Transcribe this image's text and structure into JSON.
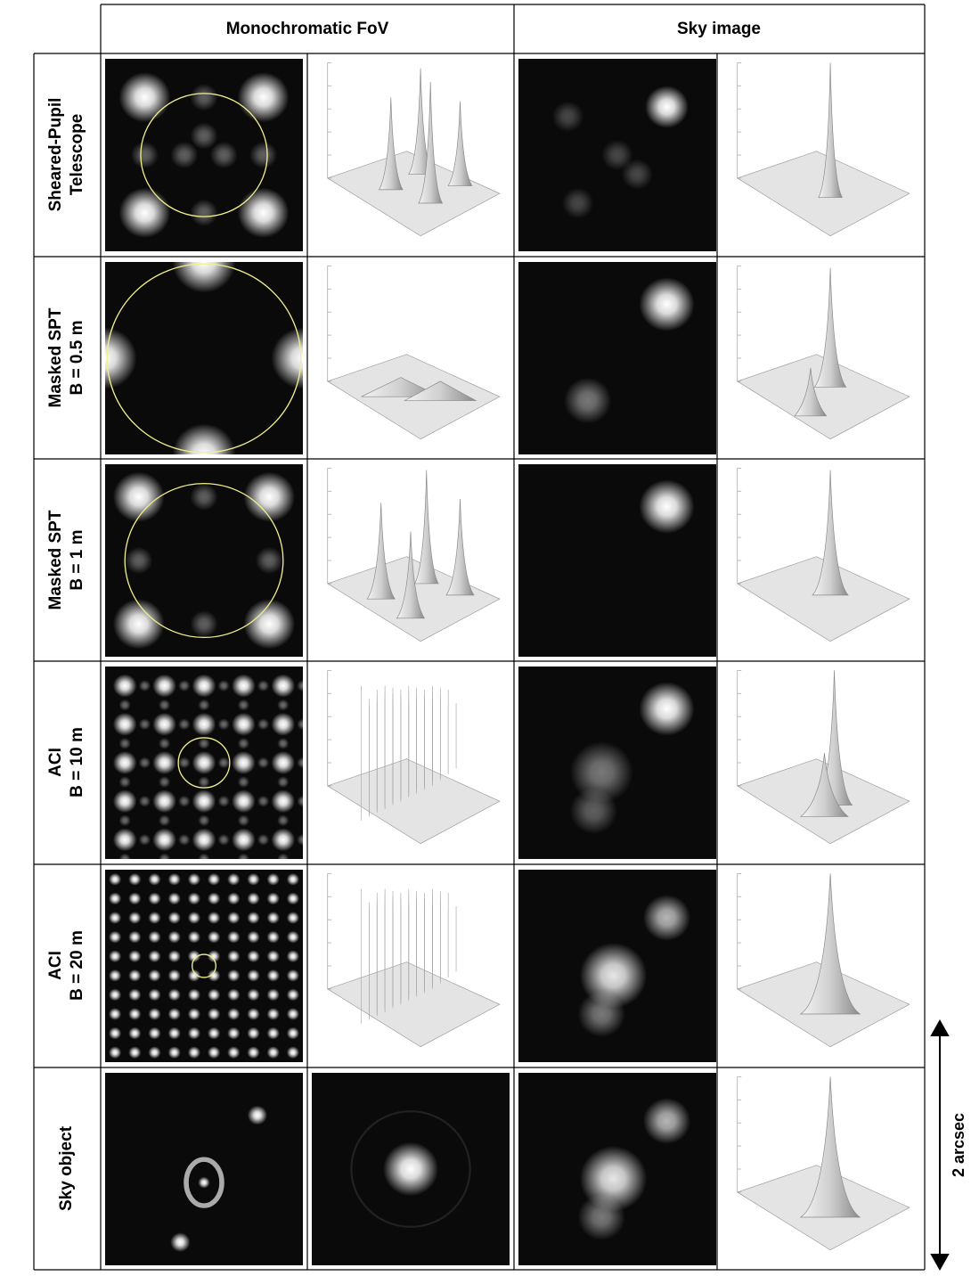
{
  "header": {
    "columns": [
      "Monochromatic FoV",
      "Sky image"
    ]
  },
  "rows": [
    {
      "label": [
        "Sheared-Pupil",
        "Telescope"
      ]
    },
    {
      "label": [
        "Masked SPT",
        "B = 0.5 m"
      ]
    },
    {
      "label": [
        "Masked SPT",
        "B = 1 m"
      ]
    },
    {
      "label": [
        "ACI",
        "B = 10 m"
      ]
    },
    {
      "label": [
        "ACI",
        "B = 20 m"
      ]
    },
    {
      "label": [
        "Sky object"
      ]
    }
  ],
  "scale_label": "2 arcsec"
}
